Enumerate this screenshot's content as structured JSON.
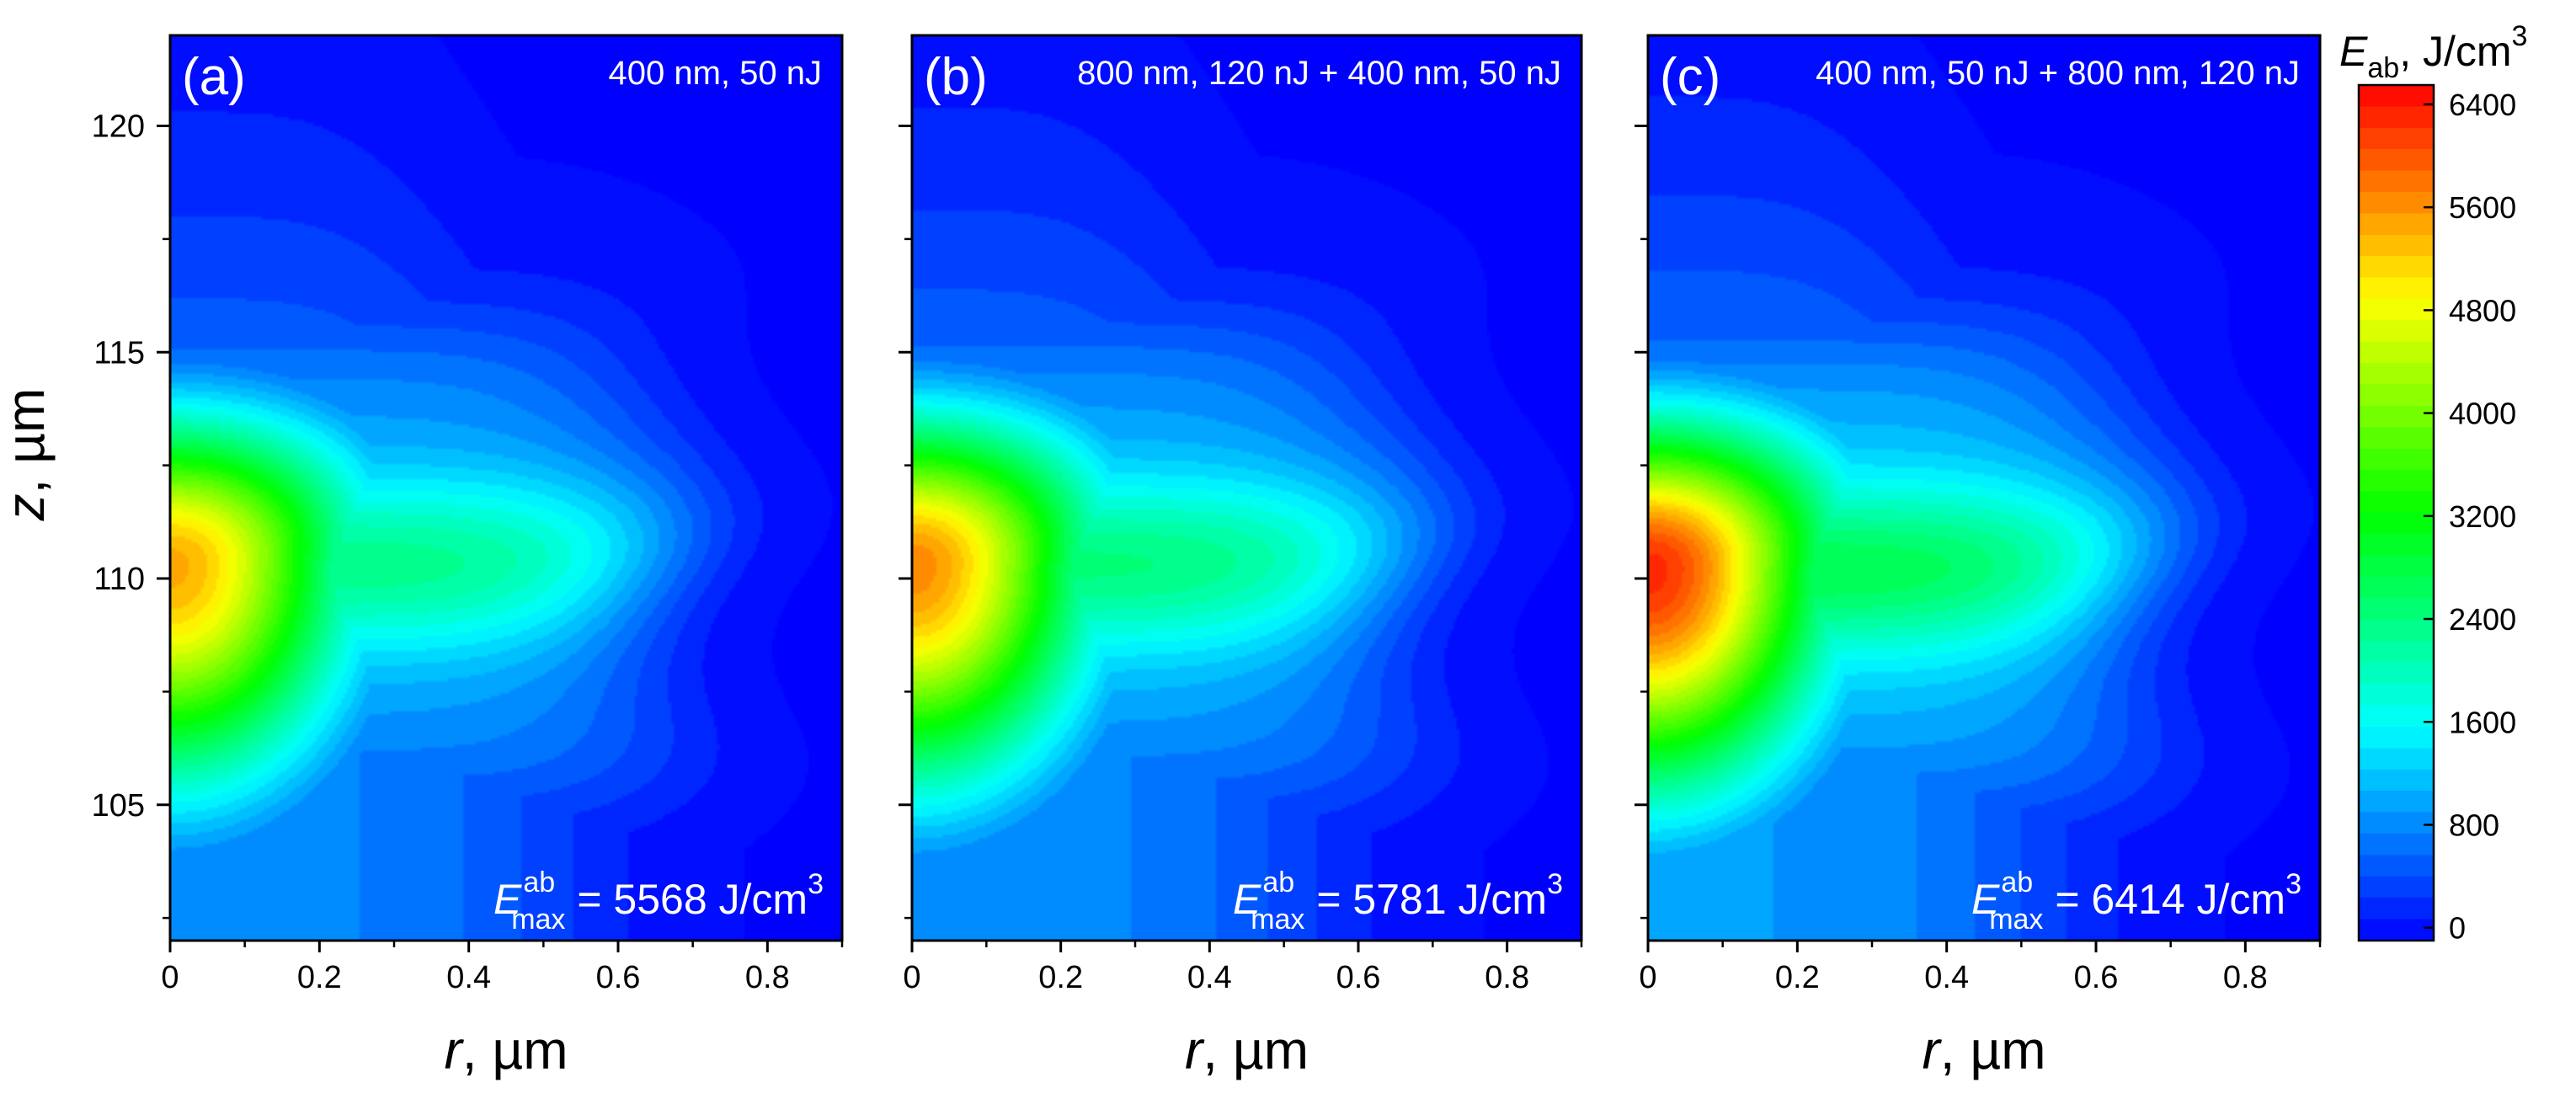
{
  "chart_data": [
    {
      "type": "heatmap",
      "panel_label": "(a)",
      "condition": "400 nm, 50 nJ",
      "emax": {
        "symbol": "E",
        "sup": "ab",
        "sub": "max",
        "eq": "= 5568 J/cm",
        "exp": "3"
      },
      "emax_value": 5568,
      "peak": {
        "r": 0.0,
        "z": 110.3,
        "value": 5568
      },
      "xlabel": "r, µm",
      "ylabel": "z, µm",
      "xlim": [
        0,
        0.9
      ],
      "ylim": [
        102,
        122
      ],
      "xticks": [
        "0",
        "0.2",
        "0.4",
        "0.6",
        "0.8"
      ],
      "yticks": [
        "105",
        "110",
        "115",
        "120"
      ],
      "xtick_values": [
        0,
        0.2,
        0.4,
        0.6,
        0.8
      ],
      "ytick_values": [
        105,
        110,
        115,
        120
      ]
    },
    {
      "type": "heatmap",
      "panel_label": "(b)",
      "condition": "800 nm, 120 nJ + 400 nm, 50 nJ",
      "emax": {
        "symbol": "E",
        "sup": "ab",
        "sub": "max",
        "eq": "= 5781 J/cm",
        "exp": "3"
      },
      "emax_value": 5781,
      "peak": {
        "r": 0.0,
        "z": 110.3,
        "value": 5781
      },
      "xlabel": "r, µm",
      "ylabel": "",
      "xlim": [
        0,
        0.9
      ],
      "ylim": [
        102,
        122
      ],
      "xticks": [
        "0",
        "0.2",
        "0.4",
        "0.6",
        "0.8"
      ],
      "yticks": [],
      "xtick_values": [
        0,
        0.2,
        0.4,
        0.6,
        0.8
      ],
      "ytick_values": [
        105,
        110,
        115,
        120
      ]
    },
    {
      "type": "heatmap",
      "panel_label": "(c)",
      "condition": "400 nm, 50 nJ + 800 nm, 120 nJ",
      "emax": {
        "symbol": "E",
        "sup": "ab",
        "sub": "max",
        "eq": "= 6414 J/cm",
        "exp": "3"
      },
      "emax_value": 6414,
      "peak": {
        "r": 0.0,
        "z": 110.2,
        "value": 6414
      },
      "xlabel": "r, µm",
      "ylabel": "",
      "xlim": [
        0,
        0.9
      ],
      "ylim": [
        102,
        122
      ],
      "xticks": [
        "0",
        "0.2",
        "0.4",
        "0.6",
        "0.8"
      ],
      "yticks": [],
      "xtick_values": [
        0,
        0.2,
        0.4,
        0.6,
        0.8
      ],
      "ytick_values": [
        105,
        110,
        115,
        120
      ]
    }
  ],
  "colorbar": {
    "title_symbol": "E",
    "title_sub": "ab",
    "title_rest": ", J/cm",
    "title_exp": "3",
    "ticks": [
      "0",
      "800",
      "1600",
      "2400",
      "3200",
      "4000",
      "4800",
      "5600",
      "6400"
    ],
    "tick_values": [
      0,
      800,
      1600,
      2400,
      3200,
      4000,
      4800,
      5600,
      6400
    ],
    "range": [
      -100,
      6550
    ],
    "colormap": [
      "#0000ff",
      "#00ffff",
      "#00ff00",
      "#ffff00",
      "#ff0000"
    ]
  }
}
